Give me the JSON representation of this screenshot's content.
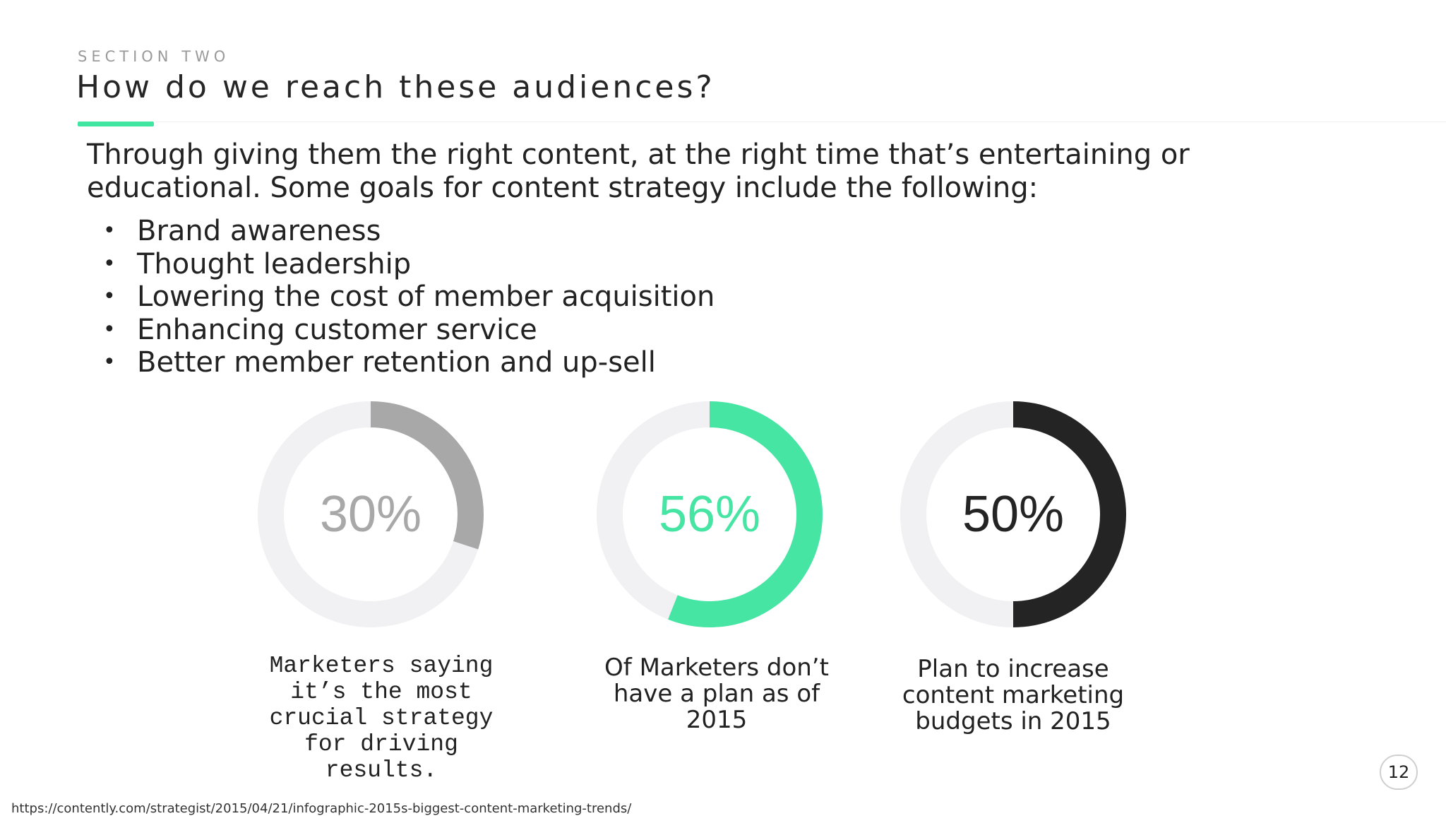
{
  "slide": {
    "section_label": "SECTION TWO",
    "title": "How do we reach these audiences?",
    "accent_color": "#3ee6a2",
    "intro_line1": "Through giving them the right content, at the right time that’s entertaining or",
    "intro_line2": "educational. Some goals for content strategy include the following:",
    "bullets": [
      "Brand awareness",
      "Thought leadership",
      "Lowering the cost of member acquisition",
      "Enhancing customer service",
      "Better member retention and up-sell"
    ],
    "stats": [
      {
        "value_label": "30%",
        "fraction": 0.3,
        "color": "#a8a8a8",
        "track_color": "#f1f0f2",
        "caption": [
          "Marketers saying",
          "it’s the most",
          "crucial strategy",
          "for driving",
          "results."
        ]
      },
      {
        "value_label": "56%",
        "fraction": 0.56,
        "color": "#47e5a4",
        "track_color": "#f1f0f2",
        "caption": [
          "Of Marketers don’t",
          "have a plan as of",
          "2015"
        ]
      },
      {
        "value_label": "50%",
        "fraction": 0.5,
        "color": "#252425",
        "track_color": "#f1f0f2",
        "caption": [
          "Plan to increase",
          "content marketing",
          "budgets in 2015"
        ]
      }
    ],
    "page_number": "12",
    "source_url": "https://contently.com/strategist/2015/04/21/infographic-2015s-biggest-content-marketing-trends/"
  }
}
